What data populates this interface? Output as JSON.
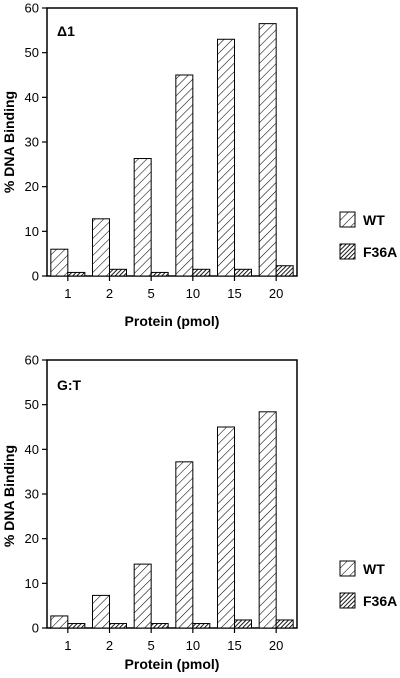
{
  "chart_data": [
    {
      "type": "bar",
      "annotation": "Δ1",
      "categories": [
        "1",
        "2",
        "5",
        "10",
        "15",
        "20"
      ],
      "series": [
        {
          "name": "WT",
          "values": [
            6,
            12.8,
            26.3,
            45,
            53,
            56.5
          ]
        },
        {
          "name": "F36A",
          "values": [
            0.8,
            1.5,
            0.8,
            1.5,
            1.5,
            2.3
          ]
        }
      ],
      "xlabel": "Protein (pmol)",
      "ylabel": "% DNA Binding",
      "ylim": [
        0,
        60
      ],
      "yticks": [
        0,
        10,
        20,
        30,
        40,
        50,
        60
      ],
      "legend_position": "right"
    },
    {
      "type": "bar",
      "annotation": "G:T",
      "categories": [
        "1",
        "2",
        "5",
        "10",
        "15",
        "20"
      ],
      "series": [
        {
          "name": "WT",
          "values": [
            2.7,
            7.3,
            14.3,
            37.2,
            45,
            48.4
          ]
        },
        {
          "name": "F36A",
          "values": [
            1,
            1,
            1,
            1,
            1.8,
            1.8
          ]
        }
      ],
      "xlabel": "Protein (pmol)",
      "ylabel": "% DNA Binding",
      "ylim": [
        0,
        60
      ],
      "yticks": [
        0,
        10,
        20,
        30,
        40,
        50,
        60
      ],
      "legend_position": "right"
    }
  ]
}
